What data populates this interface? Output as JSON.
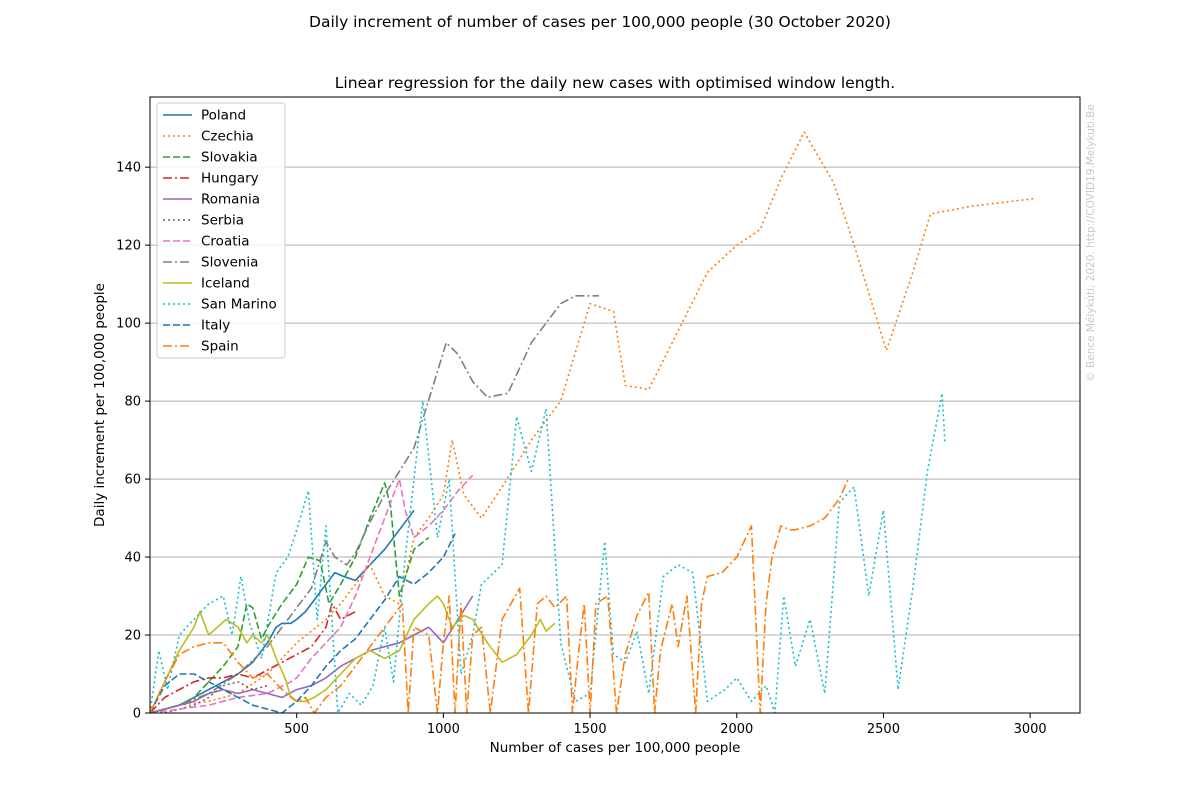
{
  "suptitle": "Daily increment of number of cases per 100,000 people (30 October 2020)",
  "watermark": "© Bence Mélykúti, 2020. http://COVID19.Melykuti.Be",
  "chart_data": {
    "type": "line",
    "title": "Linear regression for the daily new cases with optimised window length.",
    "xlabel": "Number of cases per 100,000 people",
    "ylabel": "Daily increment per 100,000 people",
    "xlim": [
      0,
      3170
    ],
    "ylim": [
      0,
      158
    ],
    "xticks": [
      500,
      1000,
      1500,
      2000,
      2500,
      3000
    ],
    "yticks": [
      0,
      20,
      40,
      60,
      80,
      100,
      120,
      140
    ],
    "grid": "horizontal",
    "legend_position": "upper left",
    "series": [
      {
        "name": "Poland",
        "color": "#1f77b4",
        "style": "solid",
        "x": [
          0,
          50,
          100,
          150,
          200,
          250,
          300,
          350,
          400,
          430,
          450,
          480,
          500,
          530,
          560,
          600,
          630,
          660,
          700,
          750,
          800,
          850,
          900
        ],
        "y": [
          0,
          1,
          2,
          4,
          6,
          8,
          10,
          13,
          18,
          22,
          23,
          23,
          24,
          26,
          29,
          33,
          36,
          35,
          34,
          38,
          42,
          47,
          52
        ]
      },
      {
        "name": "Czechia",
        "color": "#ff7f0e",
        "style": "dotted",
        "x": [
          0,
          100,
          200,
          300,
          400,
          450,
          500,
          550,
          600,
          650,
          700,
          750,
          800,
          850,
          900,
          950,
          1000,
          1030,
          1070,
          1130,
          1200,
          1300,
          1400,
          1500,
          1580,
          1620,
          1700,
          1800,
          1900,
          2000,
          2080,
          2150,
          2230,
          2330,
          2400,
          2510,
          2600,
          2660,
          2800,
          3020
        ],
        "y": [
          0,
          2,
          3,
          5,
          10,
          14,
          18,
          21,
          24,
          28,
          33,
          38,
          30,
          28,
          45,
          50,
          56,
          70,
          56,
          50,
          58,
          70,
          80,
          105,
          103,
          84,
          83,
          98,
          113,
          120,
          124,
          137,
          149,
          136,
          120,
          93,
          113,
          128,
          130,
          132
        ]
      },
      {
        "name": "Slovakia",
        "color": "#2ca02c",
        "style": "dashed",
        "x": [
          0,
          50,
          100,
          150,
          200,
          250,
          300,
          330,
          350,
          380,
          400,
          450,
          500,
          540,
          580,
          610,
          650,
          700,
          750,
          800,
          820,
          850,
          900,
          950
        ],
        "y": [
          0,
          1,
          2,
          4,
          8,
          12,
          17,
          28,
          27,
          19,
          22,
          28,
          33,
          40,
          39,
          28,
          33,
          40,
          50,
          59,
          53,
          30,
          42,
          45
        ]
      },
      {
        "name": "Hungary",
        "color": "#d62728",
        "style": "dashdot",
        "x": [
          0,
          50,
          100,
          150,
          200,
          250,
          300,
          350,
          400,
          450,
          500,
          550,
          600,
          620,
          650,
          700
        ],
        "y": [
          0,
          4,
          6,
          8,
          9,
          9,
          10,
          9,
          11,
          13,
          15,
          17,
          22,
          28,
          24,
          26
        ]
      },
      {
        "name": "Romania",
        "color": "#9467bd",
        "style": "solid",
        "x": [
          0,
          50,
          100,
          150,
          200,
          250,
          300,
          350,
          400,
          450,
          500,
          550,
          600,
          650,
          700,
          750,
          800,
          850,
          900,
          950,
          1000,
          1050,
          1100
        ],
        "y": [
          0,
          1,
          2,
          3,
          5,
          6,
          5,
          6,
          5,
          4,
          6,
          7,
          9,
          12,
          14,
          16,
          17,
          18,
          20,
          22,
          18,
          24,
          30
        ]
      },
      {
        "name": "Serbia",
        "color": "#8c564b",
        "style": "dotted",
        "x": [
          0,
          50,
          100,
          150,
          200,
          250,
          300,
          350,
          400
        ],
        "y": [
          0,
          0,
          1,
          2,
          4,
          7,
          8,
          6,
          7
        ]
      },
      {
        "name": "Croatia",
        "color": "#e377c2",
        "style": "dashed",
        "x": [
          0,
          100,
          200,
          300,
          400,
          480,
          500,
          550,
          600,
          650,
          700,
          750,
          800,
          850,
          870,
          900,
          950,
          1000,
          1050,
          1100
        ],
        "y": [
          0,
          1,
          2,
          4,
          5,
          8,
          9,
          14,
          18,
          22,
          30,
          40,
          50,
          60,
          52,
          45,
          48,
          52,
          57,
          61
        ]
      },
      {
        "name": "Slovenia",
        "color": "#7f7f7f",
        "style": "dashdot",
        "x": [
          0,
          100,
          200,
          300,
          400,
          500,
          550,
          600,
          630,
          670,
          700,
          750,
          800,
          850,
          900,
          1010,
          1050,
          1100,
          1150,
          1220,
          1300,
          1400,
          1450,
          1530
        ],
        "y": [
          0,
          2,
          5,
          10,
          17,
          27,
          32,
          44,
          40,
          38,
          41,
          49,
          56,
          62,
          68,
          95,
          92,
          85,
          81,
          82,
          95,
          105,
          107,
          107
        ]
      },
      {
        "name": "Iceland",
        "color": "#bcbd22",
        "style": "solid",
        "x": [
          0,
          50,
          100,
          150,
          170,
          200,
          230,
          260,
          300,
          330,
          350,
          380,
          400,
          430,
          460,
          480,
          500,
          530,
          560,
          600,
          650,
          700,
          750,
          800,
          850,
          900,
          950,
          980,
          1000,
          1030,
          1070,
          1100,
          1150,
          1200,
          1250,
          1300,
          1330,
          1350,
          1380
        ],
        "y": [
          0,
          8,
          16,
          22,
          26,
          20,
          22,
          24,
          22,
          18,
          20,
          18,
          20,
          14,
          9,
          4,
          3,
          3,
          4,
          6,
          10,
          14,
          16,
          14,
          16,
          24,
          28,
          30,
          28,
          22,
          25,
          24,
          18,
          13,
          15,
          20,
          24,
          21,
          23
        ]
      },
      {
        "name": "San Marino",
        "color": "#17becf",
        "style": "dotted",
        "x": [
          0,
          30,
          60,
          100,
          150,
          200,
          250,
          280,
          310,
          340,
          380,
          430,
          470,
          500,
          540,
          570,
          600,
          640,
          680,
          720,
          760,
          800,
          830,
          870,
          930,
          980,
          1020,
          1060,
          1100,
          1130,
          1200,
          1250,
          1300,
          1350,
          1400,
          1450,
          1500,
          1550,
          1580,
          1620,
          1660,
          1700,
          1750,
          1800,
          1850,
          1900,
          1960,
          2000,
          2050,
          2100,
          2130,
          2160,
          2200,
          2250,
          2300,
          2350,
          2400,
          2450,
          2500,
          2550,
          2600,
          2650,
          2700,
          2710
        ],
        "y": [
          0,
          16,
          6,
          20,
          24,
          28,
          30,
          20,
          35,
          23,
          14,
          36,
          40,
          47,
          57,
          24,
          48,
          0,
          5,
          2,
          7,
          22,
          8,
          40,
          80,
          45,
          60,
          10,
          20,
          33,
          38,
          76,
          62,
          78,
          18,
          3,
          5,
          44,
          15,
          13,
          21,
          5,
          35,
          38,
          36,
          3,
          6,
          9,
          3,
          7,
          0,
          30,
          12,
          24,
          5,
          54,
          58,
          30,
          52,
          6,
          32,
          62,
          82,
          69
        ]
      },
      {
        "name": "Italy",
        "color": "#1f77b4",
        "style": "dashed",
        "x": [
          0,
          50,
          100,
          150,
          200,
          250,
          300,
          350,
          400,
          450,
          500,
          550,
          600,
          650,
          700,
          750,
          800,
          850,
          900,
          950,
          1000,
          1040
        ],
        "y": [
          0,
          7,
          10,
          10,
          8,
          6,
          4,
          2,
          1,
          0,
          3,
          7,
          12,
          16,
          19,
          24,
          29,
          35,
          33,
          36,
          40,
          46
        ]
      },
      {
        "name": "Spain",
        "color": "#ff7f0e",
        "style": "dashdot",
        "x": [
          0,
          50,
          100,
          150,
          200,
          250,
          300,
          350,
          400,
          450,
          500,
          530,
          560,
          600,
          650,
          700,
          740,
          760,
          800,
          830,
          860,
          880,
          900,
          950,
          980,
          1000,
          1020,
          1040,
          1060,
          1080,
          1100,
          1130,
          1160,
          1200,
          1230,
          1260,
          1290,
          1320,
          1350,
          1380,
          1420,
          1440,
          1460,
          1480,
          1500,
          1520,
          1560,
          1590,
          1620,
          1660,
          1700,
          1720,
          1740,
          1780,
          1800,
          1830,
          1860,
          1880,
          1900,
          1950,
          2000,
          2050,
          2080,
          2100,
          2120,
          2150,
          2180,
          2200,
          2250,
          2300,
          2350,
          2380
        ],
        "y": [
          0,
          8,
          15,
          17,
          18,
          18,
          13,
          9,
          10,
          6,
          3,
          4,
          0,
          4,
          7,
          12,
          16,
          18,
          22,
          25,
          28,
          0,
          22,
          20,
          0,
          18,
          30,
          0,
          28,
          0,
          20,
          22,
          0,
          24,
          28,
          32,
          0,
          28,
          30,
          27,
          30,
          0,
          15,
          28,
          0,
          28,
          30,
          0,
          15,
          25,
          31,
          0,
          16,
          28,
          17,
          30,
          0,
          28,
          35,
          36,
          40,
          48,
          0,
          28,
          40,
          48,
          47,
          47,
          48,
          50,
          55,
          60
        ]
      }
    ]
  }
}
